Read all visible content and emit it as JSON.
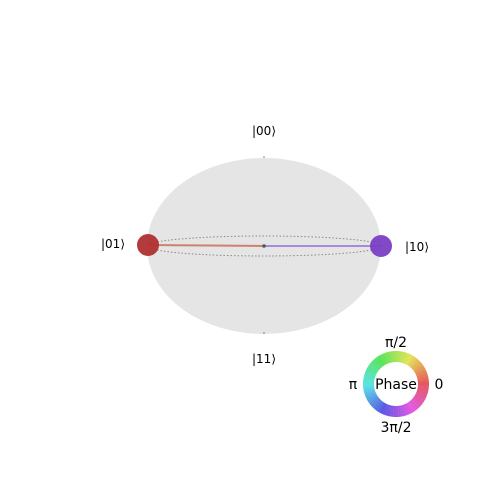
{
  "qsphere": {
    "basis_labels": {
      "top": "|00⟩",
      "left": "|01⟩",
      "right": "|10⟩",
      "bottom": "|11⟩"
    },
    "states": [
      {
        "basis": "|01⟩",
        "phase_color": "#b03030",
        "line_color": "#d08070"
      },
      {
        "basis": "|10⟩",
        "phase_color": "#7b3fc4",
        "line_color": "#a88bd8"
      }
    ],
    "sphere_color": "#e5e5e5"
  },
  "phase_wheel": {
    "center_label": "Phase",
    "label_top": "π/2",
    "label_left": "π",
    "label_right": "0",
    "label_bottom": "3π/2"
  }
}
